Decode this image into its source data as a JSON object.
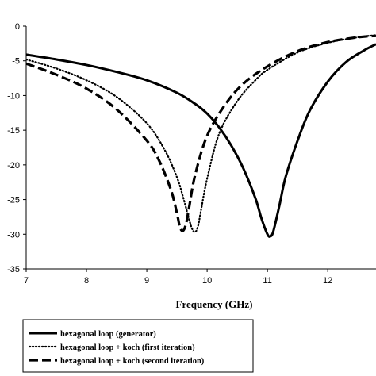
{
  "chart_data": {
    "type": "line",
    "xlabel": "Frequency (GHz)",
    "ylabel": "",
    "xlim": [
      7,
      12.8
    ],
    "ylim": [
      -35,
      0
    ],
    "xticks": [
      7,
      8,
      9,
      10,
      11,
      12
    ],
    "yticks": [
      0,
      -5,
      -10,
      -15,
      -20,
      -25,
      -30,
      -35
    ],
    "grid": false,
    "legend_position": "bottom",
    "series": [
      {
        "name": "hexagonal loop (generator)",
        "style": "solid",
        "x": [
          7.0,
          7.5,
          8.0,
          8.5,
          9.0,
          9.5,
          9.8,
          10.0,
          10.2,
          10.4,
          10.6,
          10.8,
          10.9,
          11.0,
          11.05,
          11.1,
          11.2,
          11.3,
          11.5,
          11.7,
          12.0,
          12.3,
          12.6,
          12.8
        ],
        "values": [
          -4.1,
          -4.8,
          -5.6,
          -6.6,
          -7.8,
          -9.6,
          -11.2,
          -12.6,
          -14.6,
          -17.2,
          -20.5,
          -24.8,
          -27.7,
          -30.0,
          -30.3,
          -29.5,
          -25.8,
          -21.8,
          -16.5,
          -12.2,
          -8.0,
          -5.2,
          -3.5,
          -2.6
        ]
      },
      {
        "name": "hexagonal loop + koch (first iteration)",
        "style": "dotted",
        "x": [
          7.0,
          7.5,
          8.0,
          8.5,
          9.0,
          9.3,
          9.5,
          9.6,
          9.7,
          9.75,
          9.8,
          9.85,
          9.9,
          10.0,
          10.2,
          10.5,
          10.8,
          11.0,
          11.5,
          12.0,
          12.5,
          12.8
        ],
        "values": [
          -4.8,
          -6.1,
          -7.8,
          -10.2,
          -14.0,
          -17.9,
          -21.8,
          -24.6,
          -27.8,
          -29.2,
          -29.7,
          -28.8,
          -26.5,
          -22.0,
          -15.5,
          -10.8,
          -7.8,
          -6.3,
          -3.8,
          -2.4,
          -1.6,
          -1.3
        ]
      },
      {
        "name": "hexagonal loop + koch (second iteration)",
        "style": "dashed",
        "x": [
          7.0,
          7.5,
          8.0,
          8.5,
          9.0,
          9.2,
          9.4,
          9.5,
          9.55,
          9.6,
          9.65,
          9.7,
          9.8,
          10.0,
          10.3,
          10.6,
          11.0,
          11.5,
          12.0,
          12.5,
          12.8
        ],
        "values": [
          -5.4,
          -7.0,
          -9.0,
          -12.0,
          -16.5,
          -19.3,
          -23.6,
          -27.0,
          -29.0,
          -29.5,
          -28.5,
          -26.2,
          -21.5,
          -15.8,
          -11.3,
          -8.3,
          -5.8,
          -3.6,
          -2.3,
          -1.6,
          -1.4
        ]
      }
    ]
  }
}
